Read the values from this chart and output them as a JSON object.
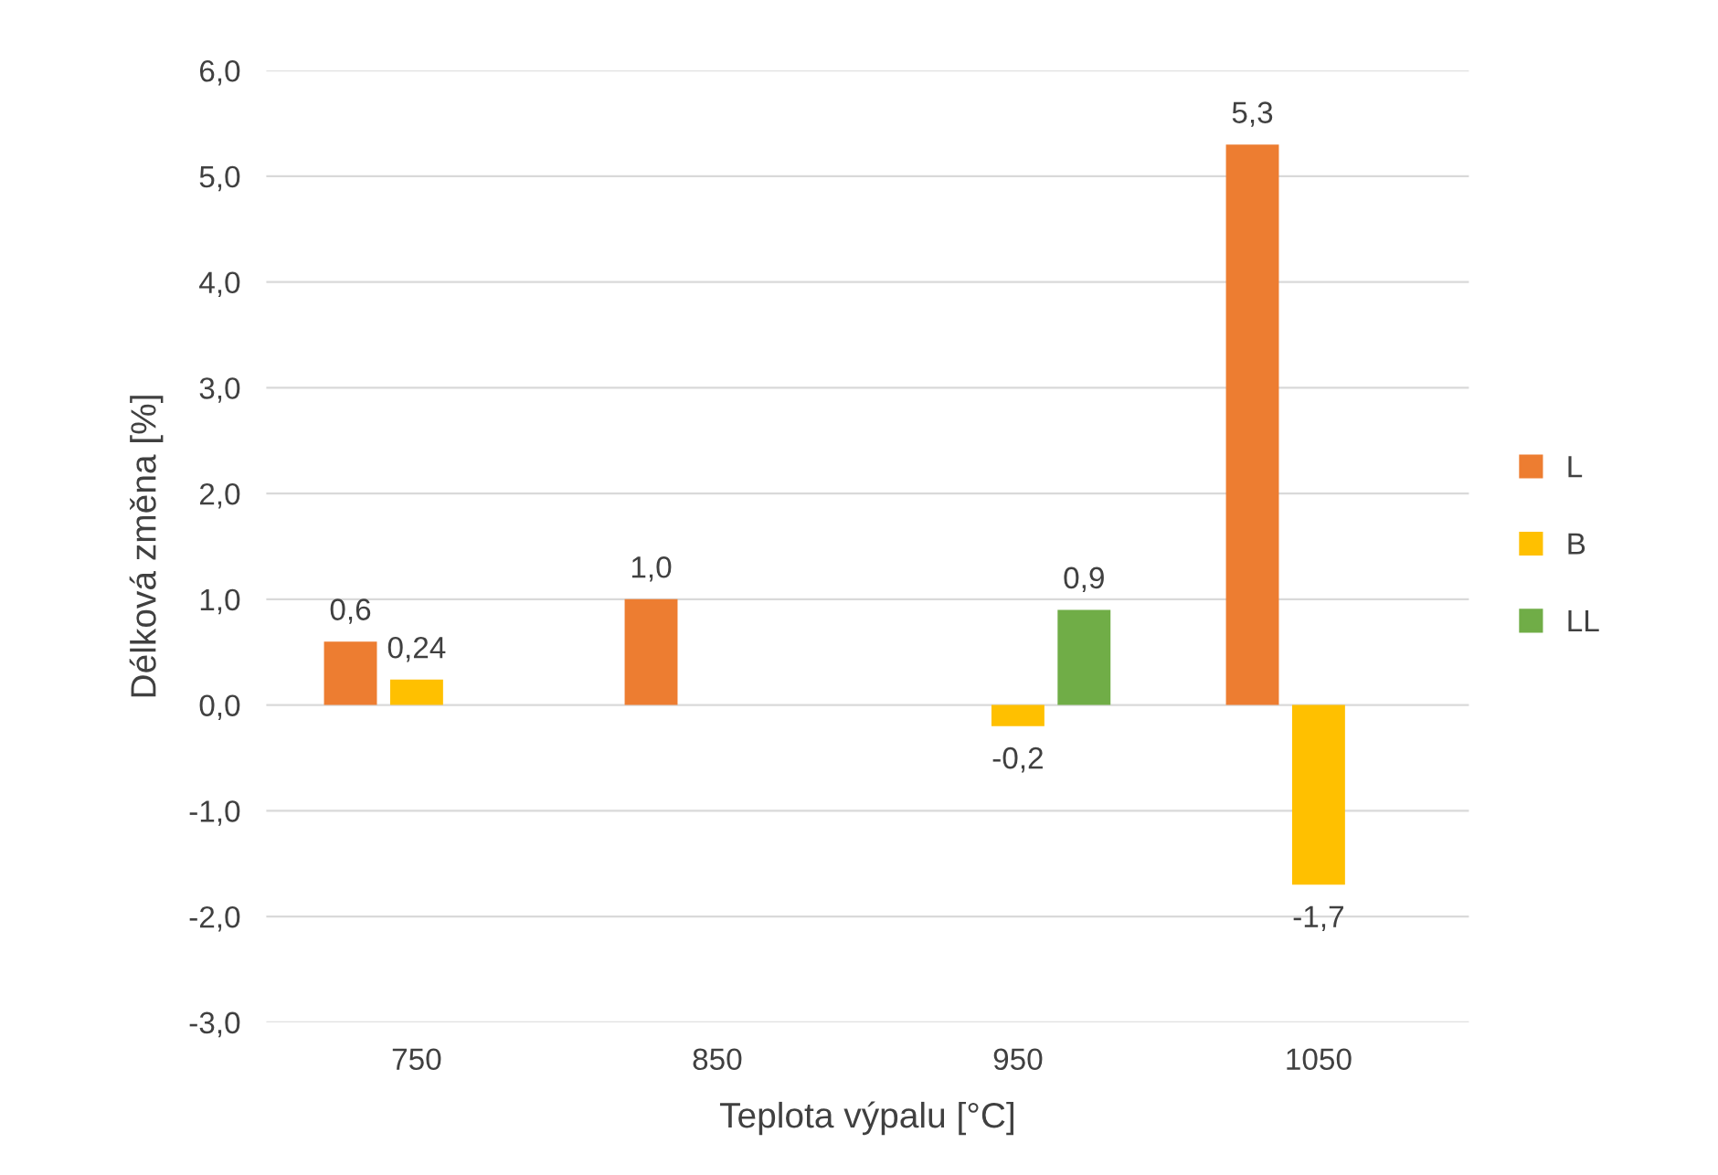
{
  "chart_data": {
    "type": "bar",
    "xlabel": "Teplota výpalu [°C]",
    "ylabel": "Délková změna [%]",
    "categories": [
      "750",
      "850",
      "950",
      "1050"
    ],
    "series": [
      {
        "name": "L",
        "color": "#ed7d31",
        "values": [
          0.6,
          1.0,
          null,
          5.3
        ],
        "value_labels": [
          "0,6",
          "1,0",
          null,
          "5,3"
        ]
      },
      {
        "name": "B",
        "color": "#ffc000",
        "values": [
          0.24,
          null,
          -0.2,
          -1.7
        ],
        "value_labels": [
          "0,24",
          null,
          "-0,2",
          "-1,7"
        ]
      },
      {
        "name": "LL",
        "color": "#70ad47",
        "values": [
          null,
          null,
          0.9,
          null
        ],
        "value_labels": [
          null,
          null,
          "0,9",
          null
        ]
      }
    ],
    "ylim": [
      -3.0,
      6.0
    ],
    "yticks": [
      {
        "value": -3.0,
        "label": "-3,0"
      },
      {
        "value": -2.0,
        "label": "-2,0"
      },
      {
        "value": -1.0,
        "label": "-1,0"
      },
      {
        "value": 0.0,
        "label": "0,0"
      },
      {
        "value": 1.0,
        "label": "1,0"
      },
      {
        "value": 2.0,
        "label": "2,0"
      },
      {
        "value": 3.0,
        "label": "3,0"
      },
      {
        "value": 4.0,
        "label": "4,0"
      },
      {
        "value": 5.0,
        "label": "5,0"
      },
      {
        "value": 6.0,
        "label": "6,0"
      }
    ],
    "grid": "y",
    "legend": "right"
  }
}
